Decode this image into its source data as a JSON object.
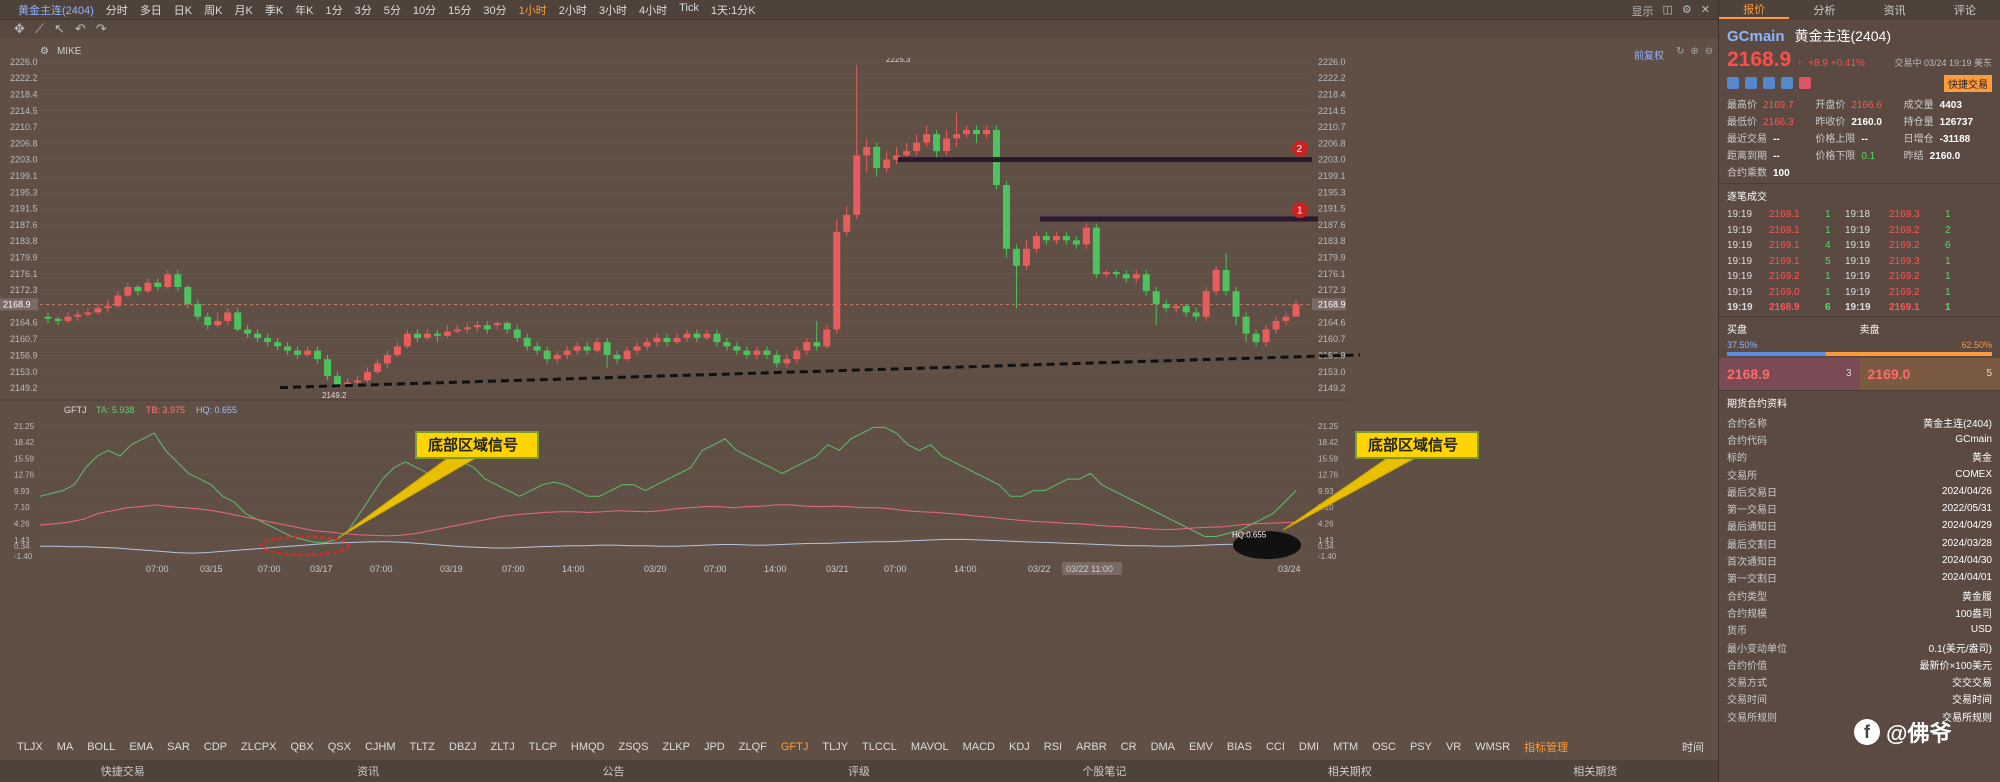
{
  "app": {
    "title": "黄金主连(2404)"
  },
  "toolbar": {
    "periods": [
      "分时",
      "多日",
      "日K",
      "周K",
      "月K",
      "季K",
      "年K",
      "1分",
      "3分",
      "5分",
      "10分",
      "15分",
      "30分",
      "1小时",
      "2小时",
      "3小时",
      "4小时",
      "Tick",
      "1天:1分K"
    ],
    "active_period": "1小时",
    "right": [
      "显示"
    ]
  },
  "drawbar": {
    "label": "MIKE",
    "restore": "前复权"
  },
  "price_axis": {
    "ticks": [
      "2226.0",
      "2222.2",
      "2218.4",
      "2214.5",
      "2210.7",
      "2206.8",
      "2203.0",
      "2199.1",
      "2195.3",
      "2191.5",
      "2187.6",
      "2183.8",
      "2179.9",
      "2176.1",
      "2172.3",
      "2168.5",
      "2164.6",
      "2160.7",
      "2156.9",
      "2153.0",
      "2149.2"
    ],
    "current": "2168.9"
  },
  "annotations": {
    "high": "2225.3",
    "low": "2149.2",
    "marker1": "1",
    "marker2": "2"
  },
  "indicator": {
    "name": "GFTJ",
    "ta": "TA: 5.938",
    "tb": "TB: 3.975",
    "hq": "HQ: 0.655",
    "hq_tip": "HQ:0.655",
    "axis": [
      "21.25",
      "18.42",
      "15.59",
      "12.76",
      "9.93",
      "7.10",
      "4.26",
      "1.43",
      "0.34",
      "-1.40"
    ],
    "callout_left": "底部区域信号",
    "callout_right": "底部区域信号"
  },
  "time_axis": [
    "07:00",
    "03/15",
    "07:00",
    "03/17",
    "07:00",
    "03/19",
    "07:00",
    "14:00",
    "03/20",
    "07:00",
    "14:00",
    "03/21",
    "07:00",
    "14:00",
    "03/22",
    "03/22 11:00",
    "03/24"
  ],
  "indicator_tabs": [
    "TLJX",
    "MA",
    "BOLL",
    "EMA",
    "SAR",
    "CDP",
    "ZLCPX",
    "QBX",
    "QSX",
    "CJHM",
    "TLTZ",
    "DBZJ",
    "ZLTJ",
    "TLCP",
    "HMQD",
    "ZSQS",
    "ZLKP",
    "JPD",
    "ZLQF",
    "GFTJ",
    "TLJY",
    "TLCCL",
    "MAVOL",
    "MACD",
    "KDJ",
    "RSI",
    "ARBR",
    "CR",
    "DMA",
    "EMV",
    "BIAS",
    "CCI",
    "DMI",
    "MTM",
    "OSC",
    "PSY",
    "VR",
    "WMSR",
    "指标管理"
  ],
  "active_indicator": "GFTJ",
  "time_label": "时间",
  "footer": [
    "快捷交易",
    "资讯",
    "公告",
    "评级",
    "个股笔记",
    "相关期权",
    "相关期货"
  ],
  "side": {
    "tabs": [
      "报价",
      "分析",
      "资讯",
      "评论"
    ],
    "code": "GCmain",
    "name": "黄金主连(2404)",
    "price": "2168.9",
    "arrow": "↑",
    "change": "+8.9 +0.41%",
    "time": "交易中 03/24 19:19 美东",
    "quick_trade": "快捷交易",
    "quote": [
      [
        "最高价",
        "2169.7",
        "开盘价",
        "2166.6",
        "成交量",
        "4403"
      ],
      [
        "最低价",
        "2166.3",
        "昨收价",
        "2160.0",
        "持仓量",
        "126737"
      ],
      [
        "最近交易",
        "--",
        "价格上限",
        "--",
        "日增仓",
        "-31188"
      ],
      [
        "距离到期",
        "--",
        "价格下限",
        "0.1",
        "昨结",
        "2160.0"
      ],
      [
        "合约乘数",
        "100",
        "",
        "",
        "",
        ""
      ]
    ],
    "ticks_title": "逐笔成交",
    "ticks": [
      [
        "19:19",
        "2169.1",
        "1",
        "19:18",
        "2169.3",
        "1"
      ],
      [
        "19:19",
        "2169.1",
        "1",
        "19:19",
        "2169.2",
        "2"
      ],
      [
        "19:19",
        "2169.1",
        "4",
        "19:19",
        "2169.2",
        "6"
      ],
      [
        "19:19",
        "2169.1",
        "5",
        "19:19",
        "2169.3",
        "1"
      ],
      [
        "19:19",
        "2169.2",
        "1",
        "19:19",
        "2169.2",
        "1"
      ],
      [
        "19:19",
        "2169.0",
        "1",
        "19:19",
        "2169.2",
        "1"
      ],
      [
        "19:19",
        "2168.9",
        "6",
        "19:19",
        "2169.1",
        "1"
      ]
    ],
    "buy_label": "买盘",
    "sell_label": "卖盘",
    "buy_pct": "37.50%",
    "sell_pct": "62.50%",
    "bid": "2168.9",
    "bid_qty": "3",
    "ask": "2169.0",
    "ask_qty": "5",
    "info_title": "期货合约资料",
    "info": [
      [
        "合约名称",
        "黄金主连(2404)"
      ],
      [
        "合约代码",
        "GCmain"
      ],
      [
        "标的",
        "黄金"
      ],
      [
        "交易所",
        "COMEX"
      ],
      [
        "最后交易日",
        "2024/04/26"
      ],
      [
        "第一交易日",
        "2022/05/31"
      ],
      [
        "最后通知日",
        "2024/04/29"
      ],
      [
        "最后交割日",
        "2024/03/28"
      ],
      [
        "首次通知日",
        "2024/04/30"
      ],
      [
        "第一交割日",
        "2024/04/01"
      ],
      [
        "合约类型",
        "黄金履"
      ],
      [
        "合约规模",
        "100盎司"
      ],
      [
        "货币",
        "USD"
      ],
      [
        "最小变动单位",
        "0.1(美元/盎司)"
      ],
      [
        "合约价值",
        "最新价×100美元"
      ],
      [
        "交易方式",
        "交交交易"
      ],
      [
        "交易时间",
        "交易时间"
      ],
      [
        "交易所规则",
        "交易所规则"
      ]
    ]
  },
  "watermark": "@佛爷"
}
